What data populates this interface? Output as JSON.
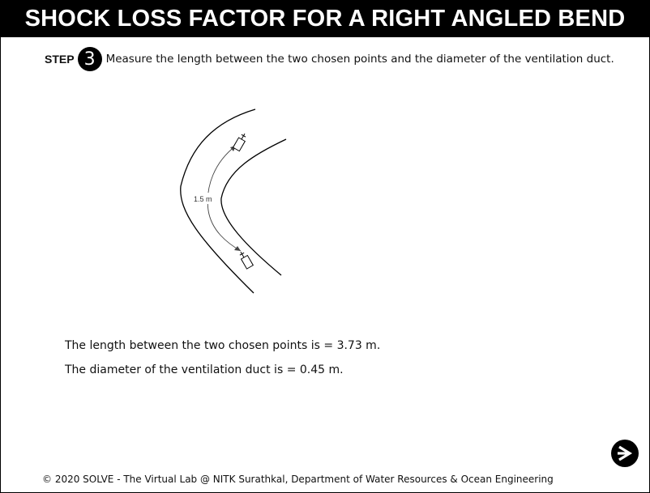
{
  "header": {
    "title": "SHOCK LOSS FACTOR FOR A RIGHT ANGLED BEND"
  },
  "step": {
    "label": "STEP",
    "number": "3",
    "instruction": "Measure the length between the two chosen points and the diameter of the ventilation duct."
  },
  "diagram": {
    "measurement_label": "1.5 m"
  },
  "results": {
    "length_text": "The length between the two chosen points is = 3.73 m.",
    "diameter_text": "The diameter of the ventilation duct is = 0.45 m."
  },
  "navigation": {
    "next_icon": "arrow-right-icon"
  },
  "footer": {
    "copyright": "© 2020 SOLVE - The Virtual Lab @ NITK Surathkal, Department of Water Resources & Ocean Engineering"
  }
}
